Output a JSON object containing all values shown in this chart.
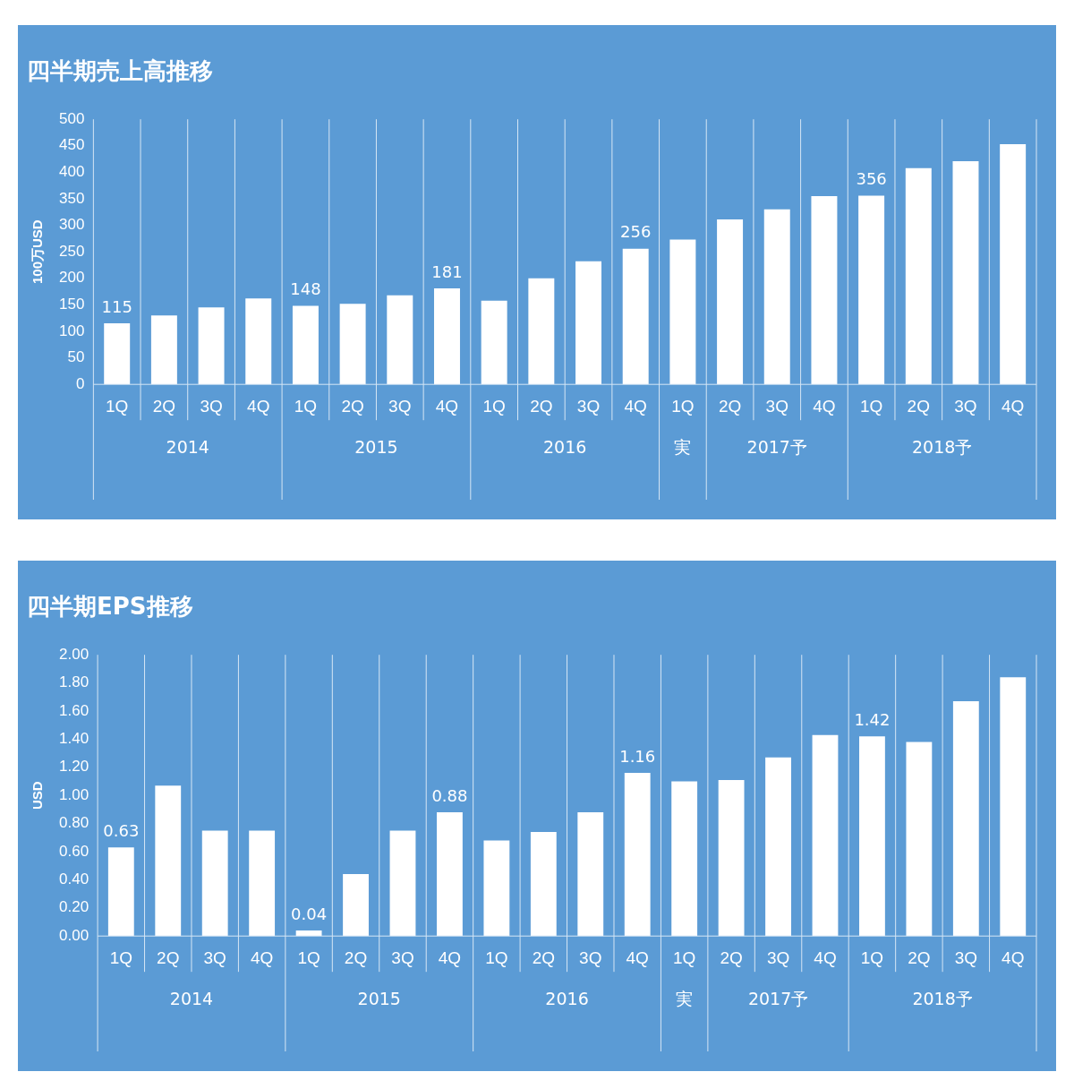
{
  "chart_data": [
    {
      "type": "bar",
      "title": "四半期売上高推移",
      "ylabel": "100万USD",
      "categories": [
        "1Q",
        "2Q",
        "3Q",
        "4Q",
        "1Q",
        "2Q",
        "3Q",
        "4Q",
        "1Q",
        "2Q",
        "3Q",
        "4Q",
        "1Q",
        "2Q",
        "3Q",
        "4Q",
        "1Q",
        "2Q",
        "3Q",
        "4Q"
      ],
      "values": [
        115,
        130,
        145,
        162,
        148,
        152,
        168,
        181,
        158,
        200,
        232,
        256,
        273,
        311,
        330,
        355,
        356,
        408,
        421,
        453
      ],
      "value_labels": [
        "115",
        null,
        null,
        null,
        "148",
        null,
        null,
        "181",
        null,
        null,
        null,
        "256",
        null,
        null,
        null,
        null,
        "356",
        null,
        null,
        null
      ],
      "color": "#ffffff",
      "ylim": [
        0,
        500
      ],
      "yticks": [
        0,
        50,
        100,
        150,
        200,
        250,
        300,
        350,
        400,
        450,
        500
      ],
      "grid": false,
      "legend": false,
      "annotations": [
        "2014",
        "2015",
        "2016",
        "実",
        "2017予",
        "2018予"
      ]
    },
    {
      "type": "bar",
      "title": "四半期EPS推移",
      "ylabel": "USD",
      "categories": [
        "1Q",
        "2Q",
        "3Q",
        "4Q",
        "1Q",
        "2Q",
        "3Q",
        "4Q",
        "1Q",
        "2Q",
        "3Q",
        "4Q",
        "1Q",
        "2Q",
        "3Q",
        "4Q",
        "1Q",
        "2Q",
        "3Q",
        "4Q"
      ],
      "values": [
        0.63,
        1.07,
        0.75,
        0.75,
        0.04,
        0.44,
        0.75,
        0.88,
        0.68,
        0.74,
        0.88,
        1.16,
        1.1,
        1.11,
        1.27,
        1.43,
        1.42,
        1.38,
        1.67,
        1.84
      ],
      "value_labels": [
        "0.63",
        null,
        null,
        null,
        "0.04",
        null,
        null,
        "0.88",
        null,
        null,
        null,
        "1.16",
        null,
        null,
        null,
        null,
        "1.42",
        null,
        null,
        null
      ],
      "color": "#ffffff",
      "ylim": [
        0,
        2
      ],
      "yticks": [
        {
          "value": 0,
          "label": "0.00"
        },
        {
          "value": 0.2,
          "label": "0.20"
        },
        {
          "value": 0.4,
          "label": "0.40"
        },
        {
          "value": 0.6,
          "label": "0.60"
        },
        {
          "value": 0.8,
          "label": "0.80"
        },
        {
          "value": 1,
          "label": "1.00"
        },
        {
          "value": 1.2,
          "label": "1.20"
        },
        {
          "value": 1.4,
          "label": "1.40"
        },
        {
          "value": 1.6,
          "label": "1.60"
        },
        {
          "value": 1.8,
          "label": "1.80"
        },
        {
          "value": 2,
          "label": "2.00"
        }
      ],
      "grid": false,
      "legend": false,
      "annotations": [
        "2014",
        "2015",
        "2016",
        "実",
        "2017予",
        "2018予"
      ]
    }
  ]
}
